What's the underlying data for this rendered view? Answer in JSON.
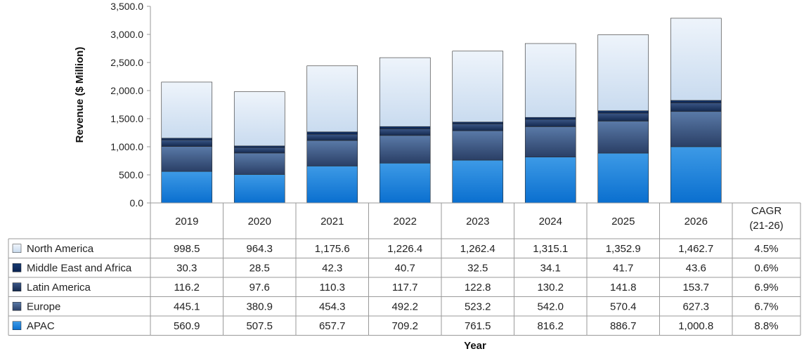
{
  "chart_data": {
    "type": "bar",
    "stacked": true,
    "categories": [
      "2019",
      "2020",
      "2021",
      "2022",
      "2023",
      "2024",
      "2025",
      "2026"
    ],
    "series": [
      {
        "name": "APAC",
        "color": "#1a7fd4",
        "values": [
          560.9,
          507.5,
          657.7,
          709.2,
          761.5,
          816.2,
          886.7,
          1000.8
        ],
        "cagr": "8.8%"
      },
      {
        "name": "Europe",
        "color": "#33507e",
        "values": [
          445.1,
          380.9,
          454.3,
          492.2,
          523.2,
          542.0,
          570.4,
          627.3
        ],
        "cagr": "6.7%"
      },
      {
        "name": "Latin America",
        "color": "#1c3560",
        "values": [
          116.2,
          97.6,
          110.3,
          117.7,
          122.8,
          130.2,
          141.8,
          153.7
        ],
        "cagr": "6.9%"
      },
      {
        "name": "Middle East and Africa",
        "color": "#0d2a57",
        "values": [
          30.3,
          28.5,
          42.3,
          40.7,
          32.5,
          34.1,
          41.7,
          43.6
        ],
        "cagr": "0.6%"
      },
      {
        "name": "North America",
        "color": "#dbe7f5",
        "values": [
          998.5,
          964.3,
          1175.6,
          1226.4,
          1262.4,
          1315.1,
          1352.9,
          1462.7
        ],
        "cagr": "4.5%"
      }
    ],
    "table_rows": [
      {
        "name": "North America",
        "values": [
          "998.5",
          "964.3",
          "1,175.6",
          "1,226.4",
          "1,262.4",
          "1,315.1",
          "1,352.9",
          "1,462.7"
        ],
        "cagr": "4.5%"
      },
      {
        "name": "Middle East and Africa",
        "values": [
          "30.3",
          "28.5",
          "42.3",
          "40.7",
          "32.5",
          "34.1",
          "41.7",
          "43.6"
        ],
        "cagr": "0.6%"
      },
      {
        "name": "Latin America",
        "values": [
          "116.2",
          "97.6",
          "110.3",
          "117.7",
          "122.8",
          "130.2",
          "141.8",
          "153.7"
        ],
        "cagr": "6.9%"
      },
      {
        "name": "Europe",
        "values": [
          "445.1",
          "380.9",
          "454.3",
          "492.2",
          "523.2",
          "542.0",
          "570.4",
          "627.3"
        ],
        "cagr": "6.7%"
      },
      {
        "name": "APAC",
        "values": [
          "560.9",
          "507.5",
          "657.7",
          "709.2",
          "761.5",
          "816.2",
          "886.7",
          "1,000.8"
        ],
        "cagr": "8.8%"
      }
    ],
    "cagr_header": [
      "CAGR",
      "(21-26)"
    ],
    "ylabel": "Revenue ($ Million)",
    "xlabel": "Year",
    "ylim": [
      0,
      3500
    ],
    "yticks": [
      "0.0",
      "500.0",
      "1,000.0",
      "1,500.0",
      "2,000.0",
      "2,500.0",
      "3,000.0",
      "3,500.0"
    ],
    "grid": false,
    "legend": "data-table"
  }
}
